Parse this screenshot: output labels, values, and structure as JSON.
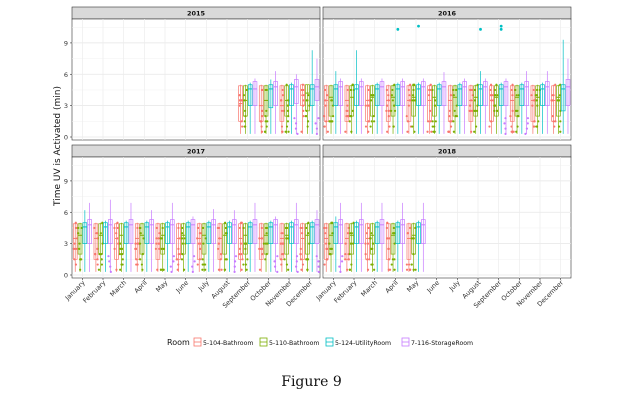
{
  "figure": {
    "caption": "Figure 9"
  },
  "chart_data": {
    "type": "box",
    "ylabel": "Time UV is Activated (min)",
    "ylim": [
      0,
      11
    ],
    "yticks": [
      0,
      3,
      6,
      9
    ],
    "categories": [
      "January",
      "February",
      "March",
      "April",
      "May",
      "June",
      "July",
      "August",
      "September",
      "October",
      "November",
      "December"
    ],
    "legend": {
      "title": "Room",
      "position": "bottom"
    },
    "series": [
      {
        "name": "5-104-Bathroom",
        "color": "#F8766D"
      },
      {
        "name": "5-110-Bathroom",
        "color": "#7CAE00"
      },
      {
        "name": "5-124-UtilityRoom",
        "color": "#00BFC4"
      },
      {
        "name": "7-116-StorageRoom",
        "color": "#C77CFF"
      }
    ],
    "facets": [
      {
        "year": "2015",
        "months": [
          8,
          9,
          10,
          11
        ],
        "boxes": [
          [
            [
              0.3,
              1.5,
              3.2,
              4.9,
              5.0
            ],
            [
              0.3,
              2.0,
              3.5,
              4.9,
              5.0
            ],
            [
              0.3,
              3.0,
              4.6,
              5.0,
              5.2
            ],
            [
              0.3,
              3.0,
              4.6,
              5.3,
              5.6
            ]
          ],
          [
            [
              0.3,
              1.5,
              3.0,
              4.9,
              5.0
            ],
            [
              0.3,
              2.0,
              3.5,
              4.9,
              5.0
            ],
            [
              0.3,
              2.8,
              4.6,
              5.0,
              5.5
            ],
            [
              0.3,
              3.0,
              4.8,
              5.3,
              6.3
            ]
          ],
          [
            [
              0.3,
              1.5,
              3.0,
              4.9,
              5.0
            ],
            [
              0.3,
              2.0,
              3.5,
              4.9,
              5.0
            ],
            [
              0.3,
              3.0,
              4.6,
              5.0,
              5.2
            ],
            [
              0.3,
              3.2,
              4.8,
              5.5,
              6.0
            ]
          ],
          [
            [
              0.3,
              3.0,
              4.0,
              5.0,
              5.0
            ],
            [
              0.3,
              2.5,
              4.2,
              5.0,
              5.0
            ],
            [
              0.3,
              3.0,
              4.6,
              5.0,
              8.3
            ],
            [
              0.3,
              3.5,
              4.8,
              5.5,
              7.5
            ]
          ]
        ],
        "outliers": []
      },
      {
        "year": "2016",
        "months": [
          0,
          1,
          2,
          3,
          4,
          5,
          6,
          7,
          8,
          9,
          10,
          11
        ],
        "boxes": [
          [
            [
              0.3,
              1.5,
              3.5,
              4.9,
              5.0
            ],
            [
              0.3,
              2.0,
              3.8,
              4.9,
              5.0
            ],
            [
              0.3,
              3.0,
              4.6,
              5.0,
              6.3
            ],
            [
              0.3,
              3.0,
              4.8,
              5.3,
              5.6
            ]
          ],
          [
            [
              0.3,
              1.5,
              3.5,
              4.9,
              5.0
            ],
            [
              0.3,
              2.0,
              3.8,
              4.9,
              5.0
            ],
            [
              0.3,
              3.0,
              4.6,
              5.0,
              8.3
            ],
            [
              0.3,
              3.0,
              4.8,
              5.3,
              5.6
            ]
          ],
          [
            [
              0.3,
              1.5,
              3.5,
              4.9,
              5.0
            ],
            [
              0.3,
              2.0,
              3.8,
              4.9,
              5.0
            ],
            [
              0.3,
              3.0,
              4.6,
              5.0,
              5.2
            ],
            [
              0.3,
              3.0,
              4.8,
              5.3,
              5.6
            ]
          ],
          [
            [
              0.3,
              1.5,
              3.5,
              4.9,
              5.0
            ],
            [
              0.3,
              2.0,
              3.8,
              4.9,
              5.0
            ],
            [
              0.3,
              3.0,
              4.6,
              5.0,
              5.2
            ],
            [
              0.3,
              3.0,
              4.8,
              5.3,
              5.6
            ]
          ],
          [
            [
              0.3,
              1.5,
              3.5,
              4.9,
              5.0
            ],
            [
              0.3,
              2.0,
              3.8,
              4.9,
              5.0
            ],
            [
              0.3,
              3.0,
              4.6,
              5.0,
              5.2
            ],
            [
              0.3,
              3.0,
              4.8,
              5.3,
              5.6
            ]
          ],
          [
            [
              0.3,
              1.5,
              3.5,
              4.9,
              5.0
            ],
            [
              0.3,
              2.0,
              3.8,
              4.9,
              5.0
            ],
            [
              0.3,
              3.0,
              4.6,
              5.0,
              5.2
            ],
            [
              0.3,
              3.0,
              4.8,
              5.3,
              6.2
            ]
          ],
          [
            [
              0.3,
              1.5,
              3.5,
              4.9,
              5.0
            ],
            [
              0.3,
              2.0,
              3.8,
              4.9,
              5.0
            ],
            [
              0.3,
              3.0,
              4.6,
              5.0,
              5.2
            ],
            [
              0.3,
              3.0,
              4.8,
              5.3,
              5.6
            ]
          ],
          [
            [
              0.3,
              1.5,
              3.5,
              4.9,
              5.0
            ],
            [
              0.3,
              2.0,
              3.8,
              4.9,
              5.0
            ],
            [
              0.3,
              3.0,
              4.6,
              5.0,
              6.3
            ],
            [
              0.3,
              3.0,
              4.8,
              5.3,
              5.6
            ]
          ],
          [
            [
              0.3,
              1.5,
              3.5,
              4.9,
              5.0
            ],
            [
              0.3,
              2.0,
              3.8,
              4.9,
              5.0
            ],
            [
              0.3,
              3.0,
              4.6,
              5.0,
              5.2
            ],
            [
              0.3,
              3.0,
              4.8,
              5.3,
              5.6
            ]
          ],
          [
            [
              0.3,
              1.5,
              3.5,
              4.9,
              5.0
            ],
            [
              0.3,
              2.0,
              3.8,
              4.9,
              5.0
            ],
            [
              0.3,
              3.0,
              4.6,
              5.0,
              5.2
            ],
            [
              0.3,
              3.0,
              4.8,
              5.3,
              6.3
            ]
          ],
          [
            [
              0.3,
              1.5,
              3.5,
              4.9,
              5.0
            ],
            [
              0.3,
              2.0,
              3.8,
              4.9,
              5.0
            ],
            [
              0.3,
              3.0,
              4.6,
              5.0,
              5.2
            ],
            [
              0.3,
              3.0,
              4.8,
              5.3,
              6.3
            ]
          ],
          [
            [
              0.3,
              1.5,
              3.5,
              4.9,
              5.0
            ],
            [
              0.3,
              2.0,
              3.8,
              4.9,
              5.0
            ],
            [
              0.3,
              2.5,
              4.6,
              5.0,
              9.3
            ],
            [
              0.3,
              3.0,
              4.8,
              5.5,
              7.5
            ]
          ]
        ],
        "outliers": [
          {
            "month": 3,
            "room": 2,
            "value": 10.3
          },
          {
            "month": 4,
            "room": 2,
            "value": 10.6
          },
          {
            "month": 7,
            "room": 2,
            "value": 10.3
          },
          {
            "month": 8,
            "room": 2,
            "value": 10.6
          },
          {
            "month": 8,
            "room": 2,
            "value": 10.3
          }
        ]
      },
      {
        "year": "2017",
        "months": [
          0,
          1,
          2,
          3,
          4,
          5,
          6,
          7,
          8,
          9,
          10,
          11
        ],
        "boxes": [
          [
            [
              0.3,
              1.5,
              3.5,
              4.9,
              5.0
            ],
            [
              0.3,
              2.0,
              3.8,
              4.9,
              5.0
            ],
            [
              0.3,
              3.0,
              4.6,
              5.0,
              6.2
            ],
            [
              0.3,
              3.0,
              4.8,
              5.3,
              6.9
            ]
          ],
          [
            [
              0.3,
              1.5,
              3.5,
              4.9,
              5.0
            ],
            [
              0.3,
              2.0,
              3.8,
              4.9,
              5.0
            ],
            [
              0.3,
              3.0,
              4.6,
              5.0,
              5.2
            ],
            [
              0.3,
              3.0,
              4.8,
              5.3,
              7.2
            ]
          ],
          [
            [
              0.3,
              1.5,
              3.5,
              4.9,
              5.0
            ],
            [
              0.3,
              2.0,
              3.8,
              4.9,
              5.0
            ],
            [
              0.3,
              3.0,
              4.6,
              5.0,
              5.2
            ],
            [
              0.3,
              3.0,
              4.8,
              5.3,
              6.9
            ]
          ],
          [
            [
              0.3,
              1.5,
              3.5,
              4.9,
              5.0
            ],
            [
              0.3,
              2.0,
              3.8,
              4.9,
              5.0
            ],
            [
              0.3,
              3.0,
              4.6,
              5.0,
              5.2
            ],
            [
              0.3,
              3.0,
              4.8,
              5.3,
              6.2
            ]
          ],
          [
            [
              0.3,
              1.5,
              3.5,
              4.9,
              5.0
            ],
            [
              0.3,
              2.0,
              3.8,
              4.9,
              5.0
            ],
            [
              0.3,
              3.0,
              4.6,
              5.0,
              5.2
            ],
            [
              0.3,
              3.0,
              4.8,
              5.3,
              6.9
            ]
          ],
          [
            [
              0.3,
              1.5,
              3.5,
              4.9,
              5.0
            ],
            [
              0.3,
              2.0,
              3.8,
              4.9,
              5.0
            ],
            [
              0.3,
              3.0,
              4.6,
              5.0,
              5.2
            ],
            [
              0.3,
              3.0,
              4.8,
              5.3,
              5.6
            ]
          ],
          [
            [
              0.3,
              1.5,
              3.5,
              4.9,
              5.0
            ],
            [
              0.3,
              2.0,
              3.8,
              4.9,
              5.0
            ],
            [
              0.3,
              3.0,
              4.6,
              5.0,
              5.2
            ],
            [
              0.3,
              3.0,
              4.8,
              5.3,
              6.3
            ]
          ],
          [
            [
              0.3,
              1.5,
              3.5,
              4.9,
              5.0
            ],
            [
              0.3,
              2.0,
              3.8,
              4.9,
              5.0
            ],
            [
              0.3,
              3.0,
              4.6,
              5.0,
              5.2
            ],
            [
              0.3,
              3.0,
              4.8,
              5.3,
              6.2
            ]
          ],
          [
            [
              0.3,
              1.5,
              3.5,
              4.9,
              5.0
            ],
            [
              0.3,
              2.0,
              3.8,
              4.9,
              5.0
            ],
            [
              0.3,
              3.0,
              4.6,
              5.0,
              5.2
            ],
            [
              0.3,
              3.0,
              4.8,
              5.3,
              6.9
            ]
          ],
          [
            [
              0.3,
              1.5,
              3.5,
              4.9,
              5.0
            ],
            [
              0.3,
              2.0,
              3.8,
              4.9,
              5.0
            ],
            [
              0.3,
              3.0,
              4.6,
              5.0,
              5.2
            ],
            [
              0.3,
              3.0,
              4.8,
              5.3,
              5.6
            ]
          ],
          [
            [
              0.3,
              1.5,
              3.5,
              4.9,
              5.0
            ],
            [
              0.3,
              2.0,
              3.8,
              4.9,
              5.0
            ],
            [
              0.3,
              3.0,
              4.6,
              5.0,
              5.2
            ],
            [
              0.3,
              3.0,
              4.8,
              5.3,
              6.9
            ]
          ],
          [
            [
              0.3,
              1.5,
              3.5,
              4.9,
              5.0
            ],
            [
              0.3,
              2.0,
              3.8,
              4.9,
              5.0
            ],
            [
              0.3,
              3.0,
              4.6,
              5.0,
              5.2
            ],
            [
              0.3,
              3.0,
              4.8,
              5.3,
              6.2
            ]
          ]
        ],
        "outliers": []
      },
      {
        "year": "2018",
        "months": [
          0,
          1,
          2,
          3,
          4
        ],
        "boxes": [
          [
            [
              0.3,
              1.5,
              3.5,
              4.9,
              5.0
            ],
            [
              0.3,
              2.0,
              3.8,
              4.9,
              5.0
            ],
            [
              0.3,
              3.0,
              4.6,
              5.0,
              5.6
            ],
            [
              0.3,
              3.0,
              4.8,
              5.3,
              6.9
            ]
          ],
          [
            [
              0.3,
              1.5,
              3.5,
              4.9,
              5.0
            ],
            [
              0.3,
              2.0,
              3.8,
              4.9,
              5.0
            ],
            [
              0.3,
              3.0,
              4.6,
              5.0,
              5.2
            ],
            [
              0.3,
              3.0,
              4.8,
              5.3,
              6.9
            ]
          ],
          [
            [
              0.3,
              1.5,
              3.5,
              4.9,
              5.0
            ],
            [
              0.3,
              2.0,
              3.8,
              4.9,
              5.0
            ],
            [
              0.3,
              3.0,
              4.6,
              5.0,
              5.2
            ],
            [
              0.3,
              3.0,
              4.8,
              5.3,
              6.9
            ]
          ],
          [
            [
              0.3,
              1.5,
              3.5,
              4.9,
              5.0
            ],
            [
              0.3,
              2.0,
              3.8,
              4.9,
              5.0
            ],
            [
              0.3,
              3.0,
              4.6,
              5.0,
              5.2
            ],
            [
              0.3,
              3.0,
              4.8,
              5.3,
              6.9
            ]
          ],
          [
            [
              0.3,
              1.5,
              3.5,
              4.9,
              5.0
            ],
            [
              0.3,
              2.0,
              3.8,
              4.9,
              5.0
            ],
            [
              0.3,
              3.0,
              4.6,
              5.0,
              5.2
            ],
            [
              0.3,
              3.0,
              4.8,
              5.3,
              6.9
            ]
          ]
        ],
        "outliers": []
      }
    ]
  }
}
